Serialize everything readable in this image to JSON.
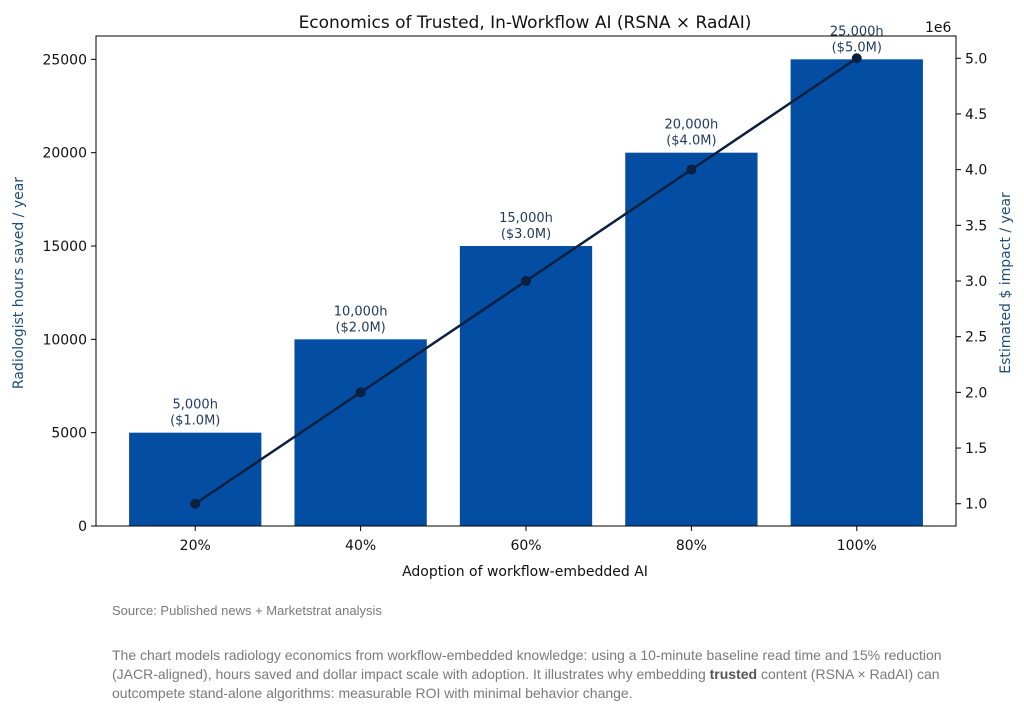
{
  "chart_data": {
    "type": "bar+line",
    "title": "Economics of Trusted, In-Workflow AI (RSNA × RadAI)",
    "xlabel": "Adoption of workflow-embedded AI",
    "ylabel": "Radiologist hours saved / year",
    "y2label": "Estimated $ impact / year",
    "y2_offset_label": "1e6",
    "categories": [
      "20%",
      "40%",
      "60%",
      "80%",
      "100%"
    ],
    "series": [
      {
        "name": "Radiologist hours saved / year",
        "type": "bar",
        "axis": "left",
        "color": "#034ea2",
        "values": [
          5000,
          10000,
          15000,
          20000,
          25000
        ]
      },
      {
        "name": "Estimated $ impact / year",
        "type": "line",
        "axis": "right",
        "color": "#0b1f3f",
        "values": [
          1000000,
          2000000,
          3000000,
          4000000,
          5000000
        ]
      }
    ],
    "bar_labels": [
      {
        "hours": "5,000h",
        "dollars": "($1.0M)"
      },
      {
        "hours": "10,000h",
        "dollars": "($2.0M)"
      },
      {
        "hours": "15,000h",
        "dollars": "($3.0M)"
      },
      {
        "hours": "20,000h",
        "dollars": "($4.0M)"
      },
      {
        "hours": "25,000h",
        "dollars": "($5.0M)"
      }
    ],
    "ylim": [
      0,
      26250
    ],
    "y_ticks": [
      0,
      5000,
      10000,
      15000,
      20000,
      25000
    ],
    "y2lim": [
      0.8,
      5.2
    ],
    "y2_ticks": [
      1.0,
      1.5,
      2.0,
      2.5,
      3.0,
      3.5,
      4.0,
      4.5,
      5.0
    ],
    "y2_tick_labels": [
      "1.0",
      "1.5",
      "2.0",
      "2.5",
      "3.0",
      "3.5",
      "4.0",
      "4.5",
      "5.0"
    ]
  },
  "source_note": "Source: Published news + Marketstrat analysis",
  "caption": {
    "before": "The chart models radiology economics from workflow-embedded knowledge: using a 10-minute baseline read time and 15% reduction (JACR-aligned), hours saved and dollar impact scale with adoption. It illustrates why embedding ",
    "bold": "trusted",
    "after": " content (RSNA × RadAI) can outcompete stand-alone algorithms: measurable ROI with minimal behavior change."
  }
}
